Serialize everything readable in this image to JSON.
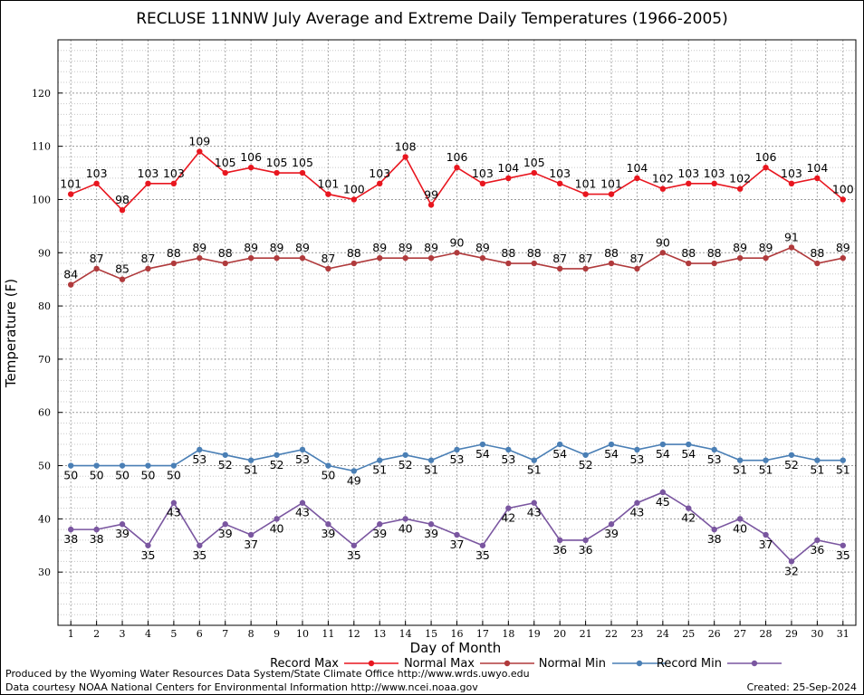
{
  "chart_data": {
    "type": "line",
    "title": "RECLUSE 11NNW July Average and Extreme Daily Temperatures (1966-2005)",
    "xlabel": "Day of Month",
    "ylabel": "Temperature (F)",
    "xlim": [
      1,
      31
    ],
    "ylim": [
      20,
      130
    ],
    "yticks": [
      30,
      40,
      50,
      60,
      70,
      80,
      90,
      100,
      110,
      120
    ],
    "x": [
      1,
      2,
      3,
      4,
      5,
      6,
      7,
      8,
      9,
      10,
      11,
      12,
      13,
      14,
      15,
      16,
      17,
      18,
      19,
      20,
      21,
      22,
      23,
      24,
      25,
      26,
      27,
      28,
      29,
      30,
      31
    ],
    "grid": true,
    "legend_position": "bottom",
    "series": [
      {
        "name": "Record Max",
        "color": "#e8161f",
        "label_pos": "above",
        "values": [
          101,
          103,
          98,
          103,
          103,
          109,
          105,
          106,
          105,
          105,
          101,
          100,
          103,
          108,
          99,
          106,
          103,
          104,
          105,
          103,
          101,
          101,
          104,
          102,
          103,
          103,
          102,
          106,
          103,
          104,
          100
        ]
      },
      {
        "name": "Normal Max",
        "color": "#b03a3c",
        "label_pos": "above",
        "values": [
          84,
          87,
          85,
          87,
          88,
          89,
          88,
          89,
          89,
          89,
          87,
          88,
          89,
          89,
          89,
          90,
          89,
          88,
          88,
          87,
          87,
          88,
          87,
          90,
          88,
          88,
          89,
          89,
          91,
          88,
          89
        ]
      },
      {
        "name": "Normal Min",
        "color": "#4a7fb5",
        "label_pos": "below",
        "values": [
          50,
          50,
          50,
          50,
          50,
          53,
          52,
          51,
          52,
          53,
          50,
          49,
          51,
          52,
          51,
          53,
          54,
          53,
          51,
          54,
          52,
          54,
          53,
          54,
          54,
          53,
          51,
          51,
          52,
          51,
          51
        ]
      },
      {
        "name": "Record Min",
        "color": "#7a56a0",
        "label_pos": "below",
        "values": [
          38,
          38,
          39,
          35,
          43,
          35,
          39,
          37,
          40,
          43,
          39,
          35,
          39,
          40,
          39,
          37,
          35,
          42,
          43,
          36,
          36,
          39,
          43,
          45,
          42,
          38,
          40,
          37,
          32,
          36,
          35
        ]
      }
    ]
  },
  "footer": {
    "credit_line1": "Produced by the Wyoming Water Resources Data System/State Climate Office http://www.wrds.uwyo.edu",
    "credit_line2": "Data courtesy NOAA National Centers for Environmental Information http://www.ncei.noaa.gov",
    "created": "Created:  25-Sep-2024"
  }
}
